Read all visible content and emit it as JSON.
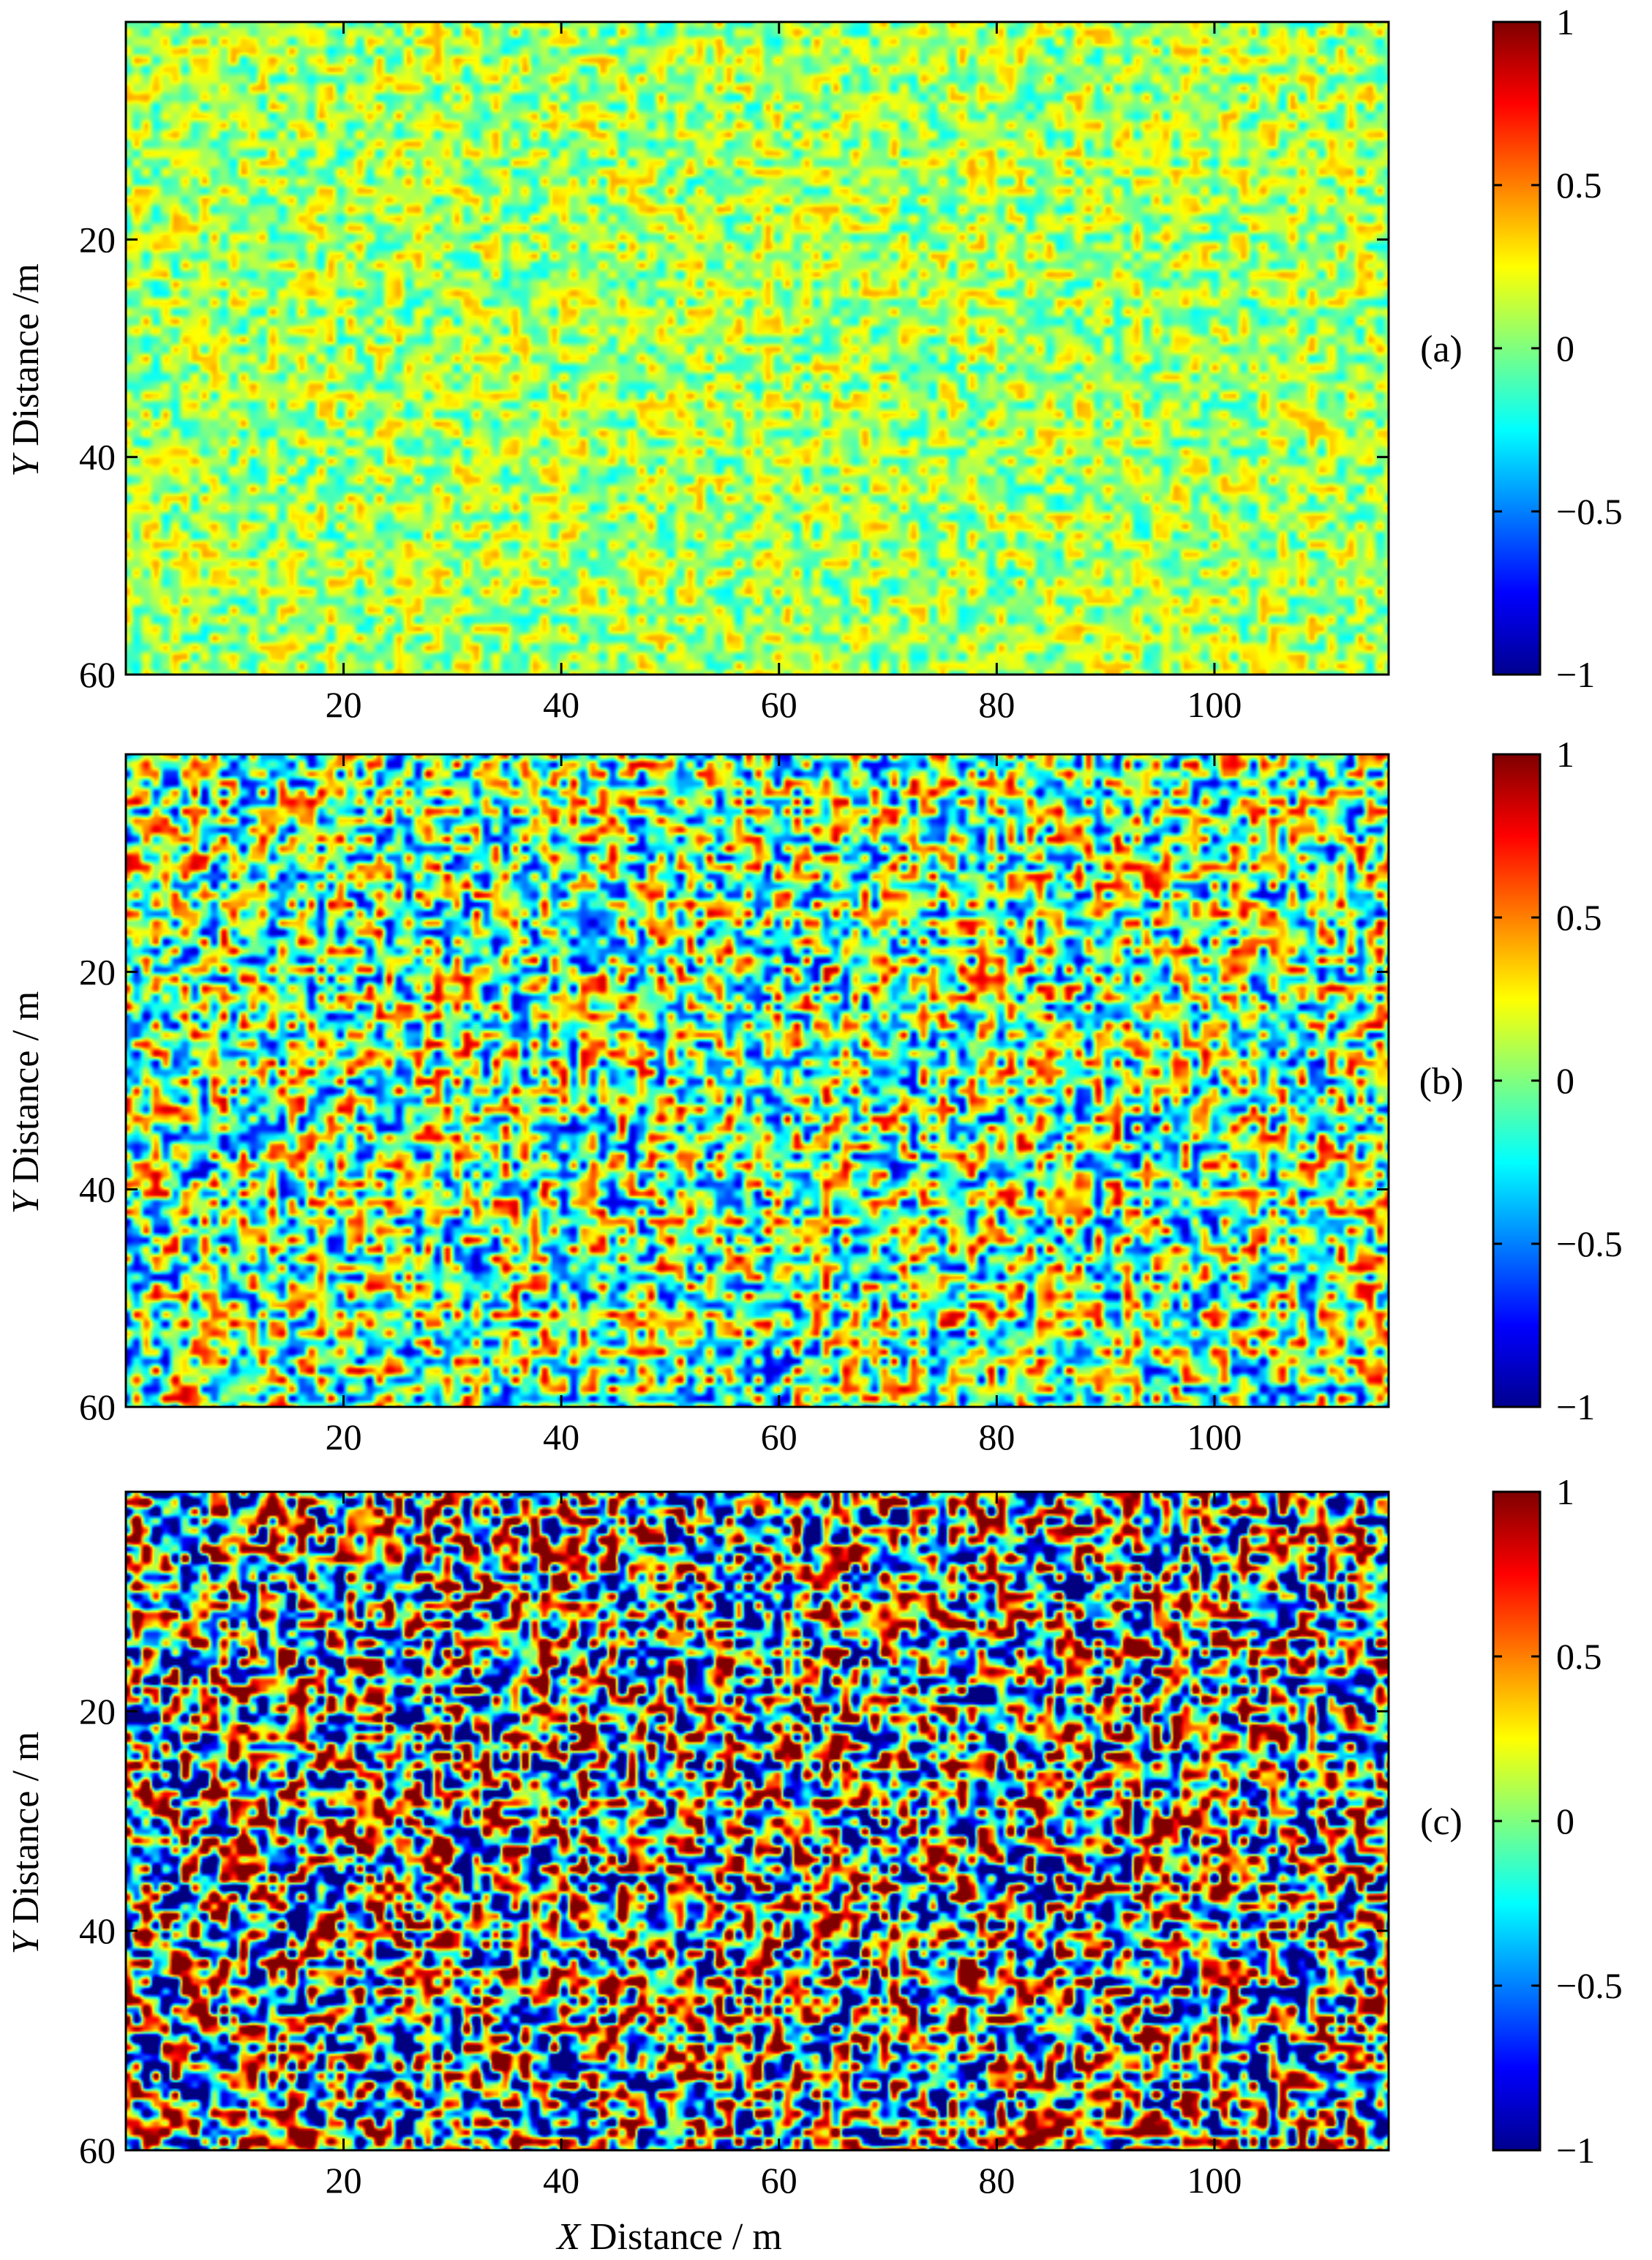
{
  "chart_data": [
    {
      "type": "heatmap",
      "panel_label": "(a)",
      "xlabel": "",
      "ylabel": "Y Distance /m",
      "ylabel_italic": "Y",
      "ylabel_rest": " Distance /m",
      "xlim": [
        0,
        116
      ],
      "ylim": [
        0,
        60
      ],
      "y_reversed": true,
      "xticks": [
        20,
        40,
        60,
        80,
        100
      ],
      "yticks": [
        20,
        40,
        60
      ],
      "colorbar": {
        "range": [
          -1,
          1
        ],
        "ticks": [
          1,
          0.5,
          0,
          -0.5,
          -1
        ],
        "tick_labels": [
          "1",
          "0.5",
          "0",
          "−0.5",
          "−1"
        ],
        "colormap": "jet"
      },
      "field_amplitude": 0.22,
      "field_mean": 0.08,
      "seed": 11
    },
    {
      "type": "heatmap",
      "panel_label": "(b)",
      "xlabel": "",
      "ylabel": "Y Distance / m",
      "ylabel_italic": "Y",
      "ylabel_rest": " Distance / m",
      "xlim": [
        0,
        116
      ],
      "ylim": [
        0,
        60
      ],
      "y_reversed": true,
      "xticks": [
        20,
        40,
        60,
        80,
        100
      ],
      "yticks": [
        20,
        40,
        60
      ],
      "colorbar": {
        "range": [
          -1,
          1
        ],
        "ticks": [
          1,
          0.5,
          0,
          -0.5,
          -1
        ],
        "tick_labels": [
          "1",
          "0.5",
          "0",
          "−0.5",
          "−1"
        ],
        "colormap": "jet"
      },
      "field_amplitude": 0.55,
      "field_mean": 0.0,
      "seed": 23
    },
    {
      "type": "heatmap",
      "panel_label": "(c)",
      "xlabel": "X Distance / m",
      "xlabel_italic": "X",
      "xlabel_rest": "  Distance / m",
      "ylabel": "Y Distance / m",
      "ylabel_italic": "Y",
      "ylabel_rest": " Distance / m",
      "xlim": [
        0,
        116
      ],
      "ylim": [
        0,
        60
      ],
      "y_reversed": true,
      "xticks": [
        20,
        40,
        60,
        80,
        100
      ],
      "yticks": [
        20,
        40,
        60
      ],
      "colorbar": {
        "range": [
          -1,
          1
        ],
        "ticks": [
          1,
          0.5,
          0,
          -0.5,
          -1
        ],
        "tick_labels": [
          "1",
          "0.5",
          "0",
          "−0.5",
          "−1"
        ],
        "colormap": "jet"
      },
      "field_amplitude": 1.0,
      "field_mean": 0.0,
      "seed": 37
    }
  ]
}
